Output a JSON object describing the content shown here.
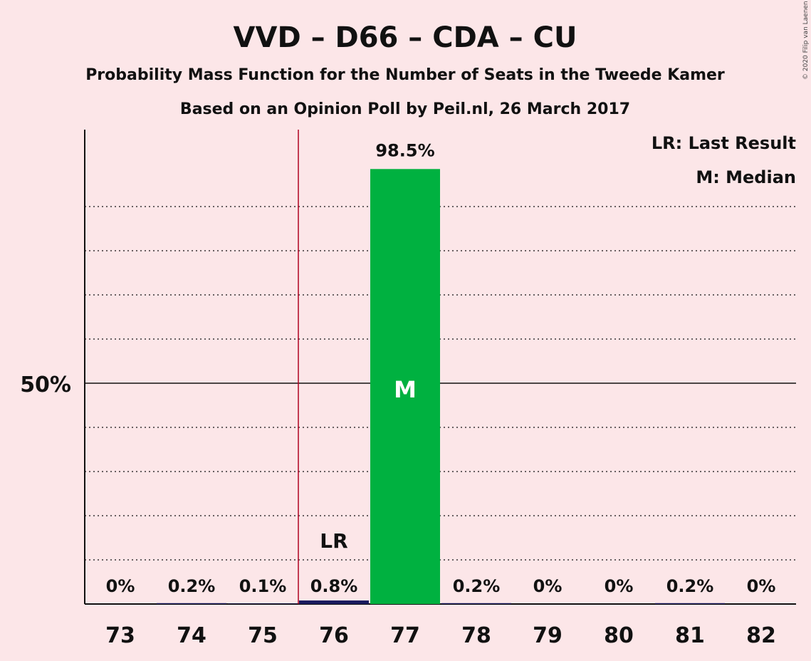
{
  "chart_data": {
    "type": "bar",
    "title": "VVD – D66 – CDA – CU",
    "subtitle": "Probability Mass Function for the Number of Seats in the Tweede Kamer",
    "subtitle2": "Based on an Opinion Poll by Peil.nl, 26 March 2017",
    "copyright": "© 2020 Filip van Laenen",
    "categories": [
      "73",
      "74",
      "75",
      "76",
      "77",
      "78",
      "79",
      "80",
      "81",
      "82"
    ],
    "values": [
      0.0,
      0.2,
      0.1,
      0.8,
      98.5,
      0.2,
      0.0,
      0.0,
      0.2,
      0.0
    ],
    "value_labels": [
      "0%",
      "0.2%",
      "0.1%",
      "0.8%",
      "98.5%",
      "0.2%",
      "0%",
      "0%",
      "0.2%",
      "0%"
    ],
    "ylim": [
      0,
      100
    ],
    "y_tick_label": "50%",
    "y_tick_value": 50,
    "grid": "dotted every 10%",
    "last_result": {
      "category": "76",
      "marker": "LR"
    },
    "median": {
      "category": "77",
      "marker": "M"
    },
    "legend": {
      "position": "top-right",
      "items": [
        "LR: Last Result",
        "M: Median"
      ]
    },
    "colors": {
      "background": "#fce6e8",
      "bar_highlight": "#00b140",
      "bar_low": "#1a1a5e",
      "last_result_line": "#b00020",
      "text": "#111111"
    }
  }
}
